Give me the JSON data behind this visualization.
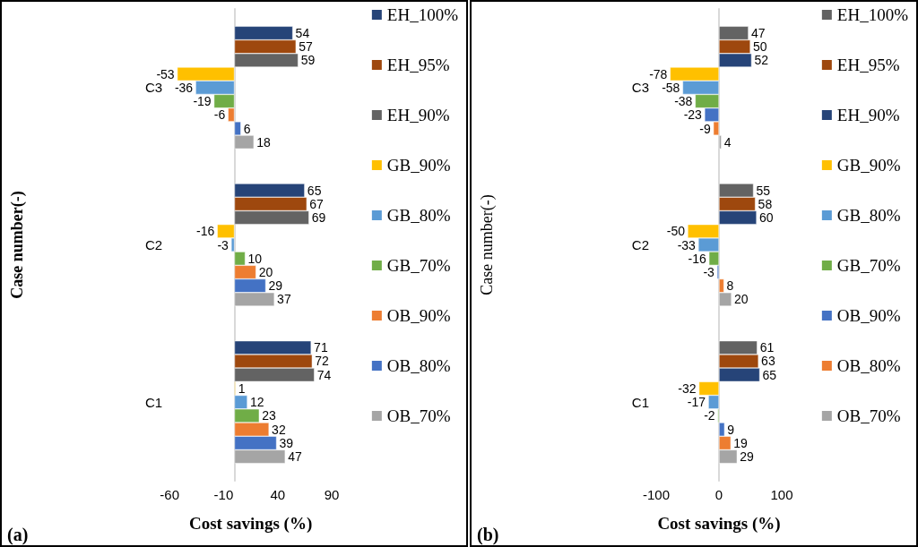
{
  "chart_data": [
    {
      "type": "bar",
      "orientation": "horizontal",
      "categories": [
        "C3",
        "C2",
        "C1"
      ],
      "xlabel": "Cost savings (%)",
      "ylabel": "Case number(-)",
      "xlim": [
        -60,
        90
      ],
      "xticks": [
        -60,
        -10,
        40,
        90
      ],
      "legend": "right",
      "data_labels": true,
      "annotations": [
        "(a)"
      ],
      "series": [
        {
          "name": "EH_100%",
          "color": "#264478",
          "values": [
            54,
            65,
            71
          ]
        },
        {
          "name": "EH_95%",
          "color": "#9e480e",
          "values": [
            57,
            67,
            72
          ]
        },
        {
          "name": "EH_90%",
          "color": "#636363",
          "values": [
            59,
            69,
            74
          ]
        },
        {
          "name": "GB_90%",
          "color": "#ffc000",
          "values": [
            -53,
            -16,
            1
          ]
        },
        {
          "name": "GB_80%",
          "color": "#5b9bd5",
          "values": [
            -36,
            -3,
            12
          ]
        },
        {
          "name": "GB_70%",
          "color": "#70ad47",
          "values": [
            -19,
            10,
            23
          ]
        },
        {
          "name": "OB_90%",
          "color": "#ed7d31",
          "values": [
            -6,
            20,
            32
          ]
        },
        {
          "name": "OB_80%",
          "color": "#4472c4",
          "values": [
            6,
            29,
            39
          ]
        },
        {
          "name": "OB_70%",
          "color": "#a5a5a5",
          "values": [
            18,
            37,
            47
          ]
        }
      ]
    },
    {
      "type": "bar",
      "orientation": "horizontal",
      "categories": [
        "C3",
        "C2",
        "C1"
      ],
      "xlabel": "Cost savings (%)",
      "ylabel": "Case number(-)",
      "xlim": [
        -100,
        100
      ],
      "xticks": [
        -100,
        0,
        100
      ],
      "legend": "right",
      "data_labels": true,
      "annotations": [
        "(b)"
      ],
      "series": [
        {
          "name": "EH_100%",
          "color": "#636363",
          "values": [
            47,
            55,
            61
          ]
        },
        {
          "name": "EH_95%",
          "color": "#9e480e",
          "values": [
            50,
            58,
            63
          ]
        },
        {
          "name": "EH_90%",
          "color": "#264478",
          "values": [
            52,
            60,
            65
          ]
        },
        {
          "name": "GB_90%",
          "color": "#ffc000",
          "values": [
            -78,
            -50,
            -32
          ]
        },
        {
          "name": "GB_80%",
          "color": "#5b9bd5",
          "values": [
            -58,
            -33,
            -17
          ]
        },
        {
          "name": "GB_70%",
          "color": "#70ad47",
          "values": [
            -38,
            -16,
            -2
          ]
        },
        {
          "name": "OB_90%",
          "color": "#4472c4",
          "values": [
            -23,
            -3,
            9
          ]
        },
        {
          "name": "OB_80%",
          "color": "#ed7d31",
          "values": [
            -9,
            8,
            19
          ]
        },
        {
          "name": "OB_70%",
          "color": "#a5a5a5",
          "values": [
            4,
            20,
            29
          ]
        }
      ]
    }
  ]
}
